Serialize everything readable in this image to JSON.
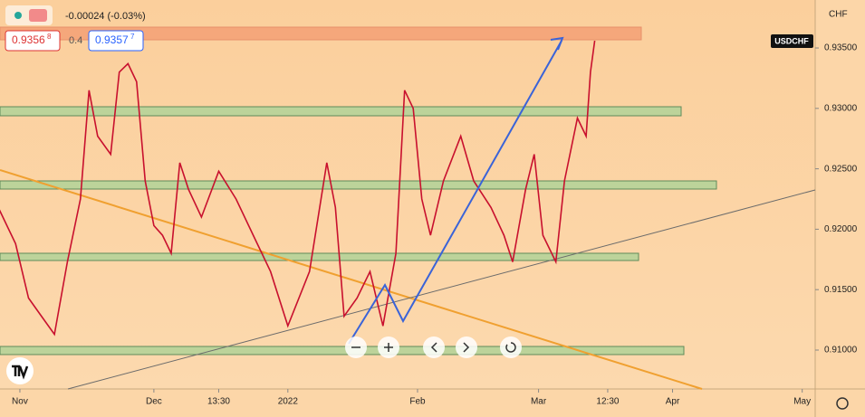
{
  "chart_data": {
    "type": "line",
    "symbol": "USDCHF",
    "currency": "CHF",
    "x": [
      -5,
      -1,
      2,
      5,
      8,
      11,
      14,
      16,
      18,
      21,
      23,
      25,
      27,
      29,
      31,
      33,
      35,
      37,
      39,
      42,
      46,
      50,
      54,
      58,
      62,
      67,
      71,
      73,
      75,
      78,
      81,
      84,
      87,
      89,
      91,
      93,
      95,
      98,
      102,
      105,
      109,
      112,
      114,
      117,
      119,
      121,
      124,
      126,
      129,
      131,
      132,
      133
    ],
    "series": [
      {
        "name": "USDCHF",
        "color": "#c8102e",
        "values": [
          0.9218,
          0.9188,
          0.9143,
          0.9128,
          0.9113,
          0.9173,
          0.9225,
          0.9315,
          0.9277,
          0.9262,
          0.933,
          0.9337,
          0.9322,
          0.924,
          0.9203,
          0.9195,
          0.918,
          0.9255,
          0.9233,
          0.921,
          0.9248,
          0.9225,
          0.9195,
          0.9165,
          0.912,
          0.9165,
          0.9255,
          0.9218,
          0.9128,
          0.9143,
          0.9165,
          0.912,
          0.918,
          0.9315,
          0.93,
          0.9225,
          0.9195,
          0.924,
          0.9277,
          0.924,
          0.9218,
          0.9195,
          0.9173,
          0.9233,
          0.9262,
          0.9195,
          0.9173,
          0.924,
          0.9292,
          0.9277,
          0.933,
          0.9356
        ]
      }
    ],
    "xlim": [
      -4.6,
      184
    ],
    "xticks": [
      {
        "value": 0,
        "label": "Nov"
      },
      {
        "value": 31,
        "label": "Dec"
      },
      {
        "value": 46,
        "label": "13:30"
      },
      {
        "value": 62,
        "label": "2022"
      },
      {
        "value": 92,
        "label": "Feb"
      },
      {
        "value": 120,
        "label": "Mar"
      },
      {
        "value": 136,
        "label": "12:30"
      },
      {
        "value": 151,
        "label": "Apr"
      },
      {
        "value": 181,
        "label": "May"
      }
    ],
    "ylim": [
      0.90678,
      0.93897
    ],
    "yticks": [
      {
        "value": 0.91,
        "label": "0.91000"
      },
      {
        "value": 0.915,
        "label": "0.91500"
      },
      {
        "value": 0.92,
        "label": "0.92000"
      },
      {
        "value": 0.925,
        "label": "0.92500"
      },
      {
        "value": 0.93,
        "label": "0.93000"
      },
      {
        "value": 0.935,
        "label": "0.93500"
      }
    ],
    "grid": false
  },
  "header": {
    "change": "-0.00024 (-0.03%)",
    "sell": "0.9356",
    "sell_sup": "8",
    "spread": "0.4",
    "buy": "0.9357",
    "buy_sup": "7"
  }
}
